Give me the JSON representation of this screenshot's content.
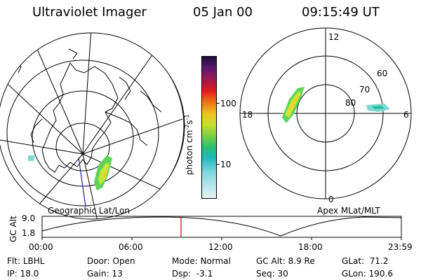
{
  "header": {
    "title": "Ultraviolet Imager",
    "date": "05 Jan 00",
    "time": "09:15:49 UT"
  },
  "geo_panel": {
    "label": "Geographic Lat/Lon"
  },
  "polar_panel": {
    "label": "Apex MLat/MLT",
    "mlt_labels": [
      "12",
      "18",
      "6",
      "0"
    ],
    "mlat_labels": [
      "60",
      "70",
      "80"
    ]
  },
  "colorbar": {
    "unit_label": "photon cm",
    "exp1": "-2",
    "s_label": "s",
    "exp2": "-1",
    "ticks": [
      "100",
      "10"
    ]
  },
  "timeline": {
    "ylabel": "GC Alt",
    "ticks_y": [
      "9.0",
      "1.8"
    ],
    "ticks_x": [
      "00:00",
      "06:00",
      "12:00",
      "18:00",
      "23:59"
    ],
    "marker_time": "09:15:49"
  },
  "info": {
    "flt_label": "Flt:",
    "flt_value": "LBHL",
    "ip_label": "IP:",
    "ip_value": "18.0",
    "door_label": "Door:",
    "door_value": "Open",
    "gain_label": "Gain:",
    "gain_value": "13",
    "mode_label": "Mode:",
    "mode_value": "Normal",
    "dsp_label": "Dsp:",
    "dsp_value": "-3.1",
    "gcalt_label": "GC Alt:",
    "gcalt_value": "8.9 Re",
    "seq_label": "Seq:",
    "seq_value": "30",
    "glat_label": "GLat:",
    "glat_value": "71.2",
    "glon_label": "GLon:",
    "glon_value": "190.6"
  },
  "colors": {
    "marker": "#d00000",
    "graticule": "#000000",
    "meridian": "#2020a0"
  }
}
